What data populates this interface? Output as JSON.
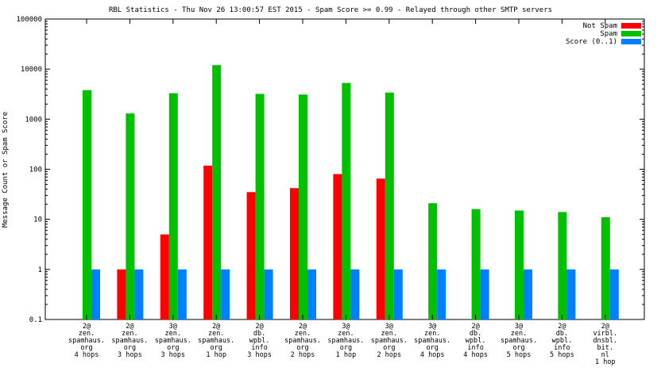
{
  "chart_data": {
    "type": "bar",
    "title": "RBL Statistics - Thu Nov 26 13:00:57 EST 2015 - Spam Score >= 0.99 - Relayed through other SMTP servers",
    "ylabel": "Message Count or Spam Score",
    "xlabel": "",
    "yscale": "log",
    "ylim": [
      0.1,
      100000
    ],
    "yticks": [
      "0.1",
      "1",
      "10",
      "100",
      "1000",
      "10000",
      "100000"
    ],
    "grid": false,
    "legend_position": "top-right",
    "categories": [
      [
        "2@",
        "zen.",
        "spamhaus.",
        "org",
        "4 hops"
      ],
      [
        "2@",
        "zen.",
        "spamhaus.",
        "org",
        "3 hops"
      ],
      [
        "3@",
        "zen.",
        "spamhaus.",
        "org",
        "3 hops"
      ],
      [
        "2@",
        "zen.",
        "spamhaus.",
        "org",
        "1 hop"
      ],
      [
        "2@",
        "db.",
        "wpbl.",
        "info",
        "3 hops"
      ],
      [
        "2@",
        "zen.",
        "spamhaus.",
        "org",
        "2 hops"
      ],
      [
        "3@",
        "zen.",
        "spamhaus.",
        "org",
        "1 hop"
      ],
      [
        "3@",
        "zen.",
        "spamhaus.",
        "org",
        "2 hops"
      ],
      [
        "3@",
        "zen.",
        "spamhaus.",
        "org",
        "4 hops"
      ],
      [
        "2@",
        "db.",
        "wpbl.",
        "info",
        "4 hops"
      ],
      [
        "3@",
        "zen.",
        "spamhaus.",
        "org",
        "5 hops"
      ],
      [
        "2@",
        "db.",
        "wpbl.",
        "info",
        "5 hops"
      ],
      [
        "2@",
        "virbl.",
        "dnsbl.",
        "bit.",
        "nl",
        "1 hop"
      ]
    ],
    "series": [
      {
        "name": "Not Spam",
        "color": "#ff0000",
        "values": [
          null,
          1,
          5,
          118,
          35,
          42,
          80,
          65,
          null,
          null,
          null,
          null,
          null
        ]
      },
      {
        "name": "Spam",
        "color": "#00c000",
        "values": [
          3800,
          1300,
          3300,
          12000,
          3200,
          3100,
          5300,
          3400,
          21,
          16,
          15,
          14,
          11
        ]
      },
      {
        "name": "Score (0..1)",
        "color": "#0080ff",
        "values": [
          1,
          1,
          1,
          1,
          1,
          1,
          1,
          1,
          1,
          1,
          1,
          1,
          1
        ]
      }
    ]
  }
}
